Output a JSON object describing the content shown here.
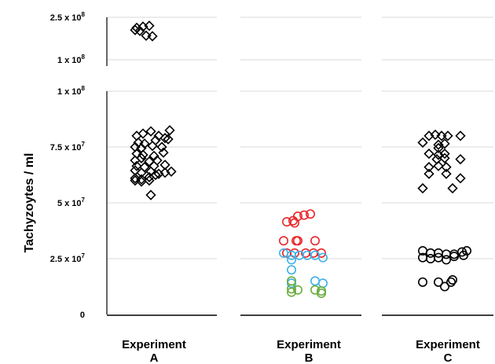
{
  "chart_data": {
    "type": "scatter",
    "ylabel": "Tachyzoytes / ml",
    "y_axis_break": {
      "lower_range": [
        0,
        100000000
      ],
      "upper_range": [
        100000000,
        250000000
      ]
    },
    "upper_ticks": [
      {
        "value": 250000000,
        "mantissa": "2.5 x 10",
        "exp": "8"
      },
      {
        "value": 100000000,
        "mantissa": "1 x 10",
        "exp": "8"
      }
    ],
    "lower_ticks": [
      {
        "value": 100000000,
        "mantissa": "1 x 10",
        "exp": "8"
      },
      {
        "value": 75000000,
        "mantissa": "7.5 x 10",
        "exp": "7"
      },
      {
        "value": 50000000,
        "mantissa": "5 x 10",
        "exp": "7"
      },
      {
        "value": 25000000,
        "mantissa": "2.5 x 10",
        "exp": "7"
      },
      {
        "value": 0,
        "mantissa": "0",
        "exp": ""
      }
    ],
    "categories": [
      {
        "line1": "Experiment",
        "line2": "A"
      },
      {
        "line1": "Experiment",
        "line2": "B"
      },
      {
        "line1": "Experiment",
        "line2": "C"
      }
    ],
    "grid": true,
    "series": [
      {
        "category": 0,
        "marker": "diamond",
        "color": "#000000",
        "points": [
          [
            -12,
            213000000
          ],
          [
            -4,
            217000000
          ],
          [
            4,
            220000000
          ],
          [
            -14,
            205000000
          ],
          [
            -8,
            202000000
          ],
          [
            0,
            185000000
          ],
          [
            8,
            183000000
          ],
          [
            -12,
            80000000
          ],
          [
            -4,
            81000000
          ],
          [
            6,
            82000000
          ],
          [
            16,
            80000000
          ],
          [
            24,
            79000000
          ],
          [
            30,
            82500000
          ],
          [
            -10,
            77000000
          ],
          [
            -2,
            76500000
          ],
          [
            12,
            78000000
          ],
          [
            28,
            78500000
          ],
          [
            -14,
            75000000
          ],
          [
            -6,
            74500000
          ],
          [
            8,
            75500000
          ],
          [
            20,
            75000000
          ],
          [
            -12,
            72000000
          ],
          [
            -4,
            71500000
          ],
          [
            10,
            71000000
          ],
          [
            22,
            72500000
          ],
          [
            -14,
            69000000
          ],
          [
            -6,
            70000000
          ],
          [
            4,
            68500000
          ],
          [
            14,
            69000000
          ],
          [
            -12,
            66500000
          ],
          [
            -2,
            66000000
          ],
          [
            10,
            66500000
          ],
          [
            24,
            67000000
          ],
          [
            -14,
            64500000
          ],
          [
            -6,
            63500000
          ],
          [
            6,
            64000000
          ],
          [
            16,
            63000000
          ],
          [
            24,
            63500000
          ],
          [
            32,
            64000000
          ],
          [
            -14,
            61000000
          ],
          [
            -6,
            60500000
          ],
          [
            4,
            61500000
          ],
          [
            12,
            62500000
          ],
          [
            -14,
            60000000
          ],
          [
            -6,
            59500000
          ],
          [
            4,
            60000000
          ],
          [
            6,
            53500000
          ]
        ]
      },
      {
        "category": 1,
        "marker": "circle",
        "color": "#e8262a",
        "points": [
          [
            -18,
            41500000
          ],
          [
            -10,
            42000000
          ],
          [
            -4,
            44000000
          ],
          [
            4,
            44500000
          ],
          [
            12,
            45000000
          ],
          [
            -8,
            41000000
          ],
          [
            -22,
            33000000
          ],
          [
            -6,
            33000000
          ],
          [
            -4,
            33000000
          ],
          [
            18,
            33000000
          ],
          [
            -18,
            27500000
          ],
          [
            -8,
            27500000
          ],
          [
            6,
            27500000
          ],
          [
            16,
            27500000
          ],
          [
            26,
            27500000
          ]
        ]
      },
      {
        "category": 1,
        "marker": "circle",
        "color": "#3fb1e5",
        "points": [
          [
            -22,
            27500000
          ],
          [
            -12,
            26500000
          ],
          [
            -2,
            26500000
          ],
          [
            8,
            26500000
          ],
          [
            18,
            26500000
          ],
          [
            28,
            25500000
          ],
          [
            -12,
            24500000
          ],
          [
            -12,
            20000000
          ],
          [
            -12,
            14000000
          ],
          [
            18,
            15000000
          ],
          [
            28,
            14000000
          ]
        ]
      },
      {
        "category": 1,
        "marker": "circle",
        "color": "#6aad3d",
        "points": [
          [
            -12,
            15000000
          ],
          [
            -12,
            11500000
          ],
          [
            -4,
            11000000
          ],
          [
            18,
            11000000
          ],
          [
            26,
            10500000
          ],
          [
            -12,
            10000000
          ],
          [
            26,
            9500000
          ]
        ]
      },
      {
        "category": 2,
        "marker": "diamond",
        "color": "#000000",
        "points": [
          [
            -14,
            80000000
          ],
          [
            -6,
            80500000
          ],
          [
            2,
            80000000
          ],
          [
            10,
            80000000
          ],
          [
            26,
            80000000
          ],
          [
            -22,
            77000000
          ],
          [
            -2,
            76000000
          ],
          [
            6,
            76500000
          ],
          [
            -2,
            74500000
          ],
          [
            -14,
            72000000
          ],
          [
            -2,
            71500000
          ],
          [
            6,
            72000000
          ],
          [
            -4,
            69500000
          ],
          [
            6,
            70000000
          ],
          [
            26,
            69500000
          ],
          [
            -14,
            66000000
          ],
          [
            -2,
            66500000
          ],
          [
            8,
            66000000
          ],
          [
            -14,
            63000000
          ],
          [
            8,
            63000000
          ],
          [
            26,
            61000000
          ],
          [
            -22,
            56500000
          ],
          [
            16,
            56500000
          ]
        ]
      },
      {
        "category": 2,
        "marker": "circle",
        "color": "#000000",
        "points": [
          [
            -22,
            28500000
          ],
          [
            -12,
            27500000
          ],
          [
            -2,
            27500000
          ],
          [
            8,
            27000000
          ],
          [
            18,
            27000000
          ],
          [
            28,
            28000000
          ],
          [
            34,
            28500000
          ],
          [
            -22,
            25500000
          ],
          [
            -12,
            25000000
          ],
          [
            -2,
            25500000
          ],
          [
            8,
            24500000
          ],
          [
            18,
            26000000
          ],
          [
            30,
            26500000
          ],
          [
            -22,
            14500000
          ],
          [
            -2,
            14500000
          ],
          [
            6,
            12500000
          ],
          [
            14,
            14500000
          ],
          [
            16,
            15500000
          ]
        ]
      }
    ]
  }
}
